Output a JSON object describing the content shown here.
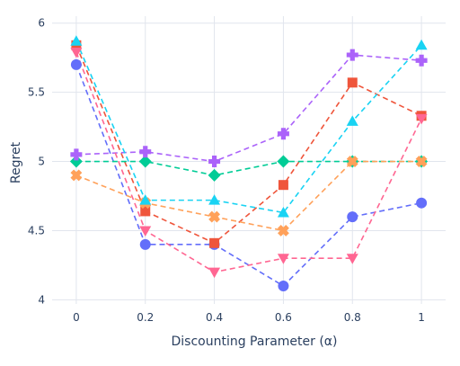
{
  "chart_data": {
    "type": "line",
    "xlabel": "Discounting Parameter (α)",
    "ylabel": "Regret",
    "x": [
      0,
      0.2,
      0.4,
      0.6,
      0.8,
      1
    ],
    "x_tick_labels": [
      "0",
      "0.2",
      "0.4",
      "0.6",
      "0.8",
      "1"
    ],
    "xlim": [
      -0.07,
      1.07
    ],
    "y_ticks": [
      4,
      4.5,
      5,
      5.5,
      6
    ],
    "y_tick_labels": [
      "4",
      "4.5",
      "5",
      "5.5",
      "6"
    ],
    "ylim": [
      3.97,
      6.05
    ],
    "grid": true,
    "legend": false,
    "series": [
      {
        "color": "#636efa",
        "marker": "circle",
        "values": [
          5.7,
          4.4,
          4.4,
          4.1,
          4.6,
          4.7
        ]
      },
      {
        "color": "#ef553b",
        "marker": "square",
        "values": [
          5.84,
          4.64,
          4.41,
          4.83,
          5.57,
          5.33
        ]
      },
      {
        "color": "#00cc96",
        "marker": "diamond",
        "values": [
          5.0,
          5.0,
          4.9,
          5.0,
          5.0,
          5.0
        ]
      },
      {
        "color": "#ab63fa",
        "marker": "cross",
        "values": [
          5.05,
          5.07,
          5.0,
          5.2,
          5.77,
          5.73
        ]
      },
      {
        "color": "#ffa15a",
        "marker": "x",
        "values": [
          4.9,
          4.7,
          4.6,
          4.5,
          5.0,
          5.0
        ]
      },
      {
        "color": "#19d3f3",
        "marker": "triangle-up",
        "values": [
          5.87,
          4.72,
          4.72,
          4.63,
          5.29,
          5.84
        ]
      },
      {
        "color": "#ff6692",
        "marker": "triangle-down",
        "values": [
          5.79,
          4.5,
          4.2,
          4.3,
          4.3,
          5.31
        ]
      }
    ]
  }
}
